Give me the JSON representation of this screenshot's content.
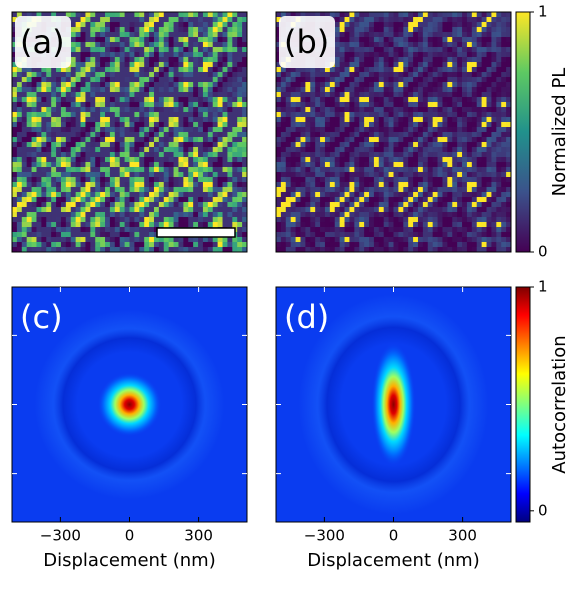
{
  "chart_data": [
    {
      "type": "image",
      "label": "(a)",
      "label_box": true,
      "colormap": "viridis",
      "pattern": "maze",
      "scale_bar": true
    },
    {
      "type": "image",
      "label": "(b)",
      "label_box": true,
      "colormap": "viridis",
      "pattern": "sparse",
      "colorbar": {
        "label": "Normalized PL",
        "lim": [
          0,
          1
        ],
        "ticks": [
          0,
          1
        ],
        "colormap": "viridis"
      }
    },
    {
      "type": "image",
      "label": "(c)",
      "label_box": false,
      "colormap": "jet",
      "pattern": "round",
      "xlabel": "Displacement (nm)",
      "xlim": [
        -510,
        510
      ],
      "xticks": [
        {
          "value": -300,
          "label": "−300"
        },
        0,
        300
      ],
      "ylim": [
        -510,
        510
      ],
      "yticks": [
        -300,
        0,
        300
      ]
    },
    {
      "type": "image",
      "label": "(d)",
      "label_box": false,
      "colormap": "jet",
      "pattern": "elongated",
      "xlabel": "Displacement (nm)",
      "xlim": [
        -510,
        510
      ],
      "xticks": [
        {
          "value": -300,
          "label": "−300"
        },
        0,
        300
      ],
      "ylim": [
        -510,
        510
      ],
      "yticks": [
        -300,
        0,
        300
      ],
      "colorbar": {
        "label": "Autocorrelation",
        "lim": [
          -0.05,
          1
        ],
        "ticks": [
          0,
          1
        ],
        "colormap": "jet"
      }
    }
  ]
}
